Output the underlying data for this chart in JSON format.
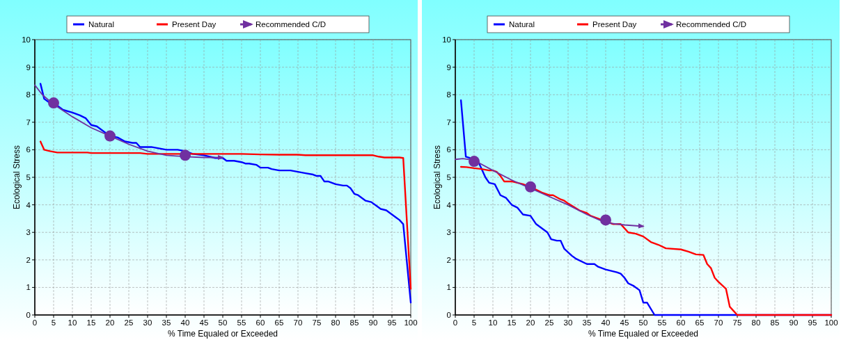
{
  "chart_data": [
    {
      "type": "line",
      "xlabel": "% Time Equaled or Exceeded",
      "ylabel": "Ecological Stress",
      "xlim": [
        0,
        100
      ],
      "ylim": [
        0,
        10
      ],
      "xticks": [
        0,
        5,
        10,
        15,
        20,
        25,
        30,
        35,
        40,
        45,
        50,
        55,
        60,
        65,
        70,
        75,
        80,
        85,
        90,
        95,
        100
      ],
      "yticks": [
        0,
        1,
        2,
        3,
        4,
        5,
        6,
        7,
        8,
        9,
        10
      ],
      "grid": true,
      "legend": "top",
      "line_style": "solid",
      "series": [
        {
          "name": "Natural",
          "color": "#0000ff",
          "x": [
            1.5,
            2.5,
            4,
            6,
            7.5,
            10,
            12,
            13.5,
            15,
            16.5,
            18,
            20,
            22,
            24,
            26,
            27,
            28,
            31,
            33,
            35,
            38,
            40,
            42,
            45,
            48,
            50,
            51,
            53,
            55,
            56,
            57,
            59,
            60,
            62,
            63,
            65,
            68,
            70,
            72,
            74,
            75,
            76,
            77,
            78,
            80,
            82,
            83,
            84,
            85,
            86,
            88,
            89.5,
            91,
            92,
            93.5,
            95,
            96,
            97,
            98,
            100
          ],
          "values": [
            8.4,
            7.85,
            7.7,
            7.6,
            7.45,
            7.35,
            7.25,
            7.15,
            6.9,
            6.85,
            6.7,
            6.5,
            6.45,
            6.3,
            6.25,
            6.25,
            6.1,
            6.1,
            6.05,
            6,
            6,
            5.95,
            5.85,
            5.8,
            5.7,
            5.7,
            5.6,
            5.6,
            5.55,
            5.5,
            5.5,
            5.45,
            5.35,
            5.35,
            5.3,
            5.25,
            5.25,
            5.2,
            5.15,
            5.1,
            5.05,
            5.05,
            4.85,
            4.85,
            4.75,
            4.7,
            4.7,
            4.6,
            4.4,
            4.35,
            4.15,
            4.1,
            3.95,
            3.85,
            3.8,
            3.65,
            3.55,
            3.45,
            3.3,
            0.45
          ]
        },
        {
          "name": "Present Day",
          "color": "#ff0000",
          "x": [
            1.5,
            2.5,
            4,
            6,
            10,
            14,
            15,
            20,
            28,
            30,
            50,
            55,
            60,
            65,
            70,
            72,
            90,
            91.5,
            93,
            97,
            98,
            100
          ],
          "values": [
            6.3,
            6,
            5.95,
            5.9,
            5.9,
            5.9,
            5.88,
            5.88,
            5.88,
            5.85,
            5.85,
            5.85,
            5.83,
            5.82,
            5.82,
            5.8,
            5.8,
            5.75,
            5.72,
            5.72,
            5.7,
            0.95
          ]
        },
        {
          "name": "Recommended C/D",
          "color": "#7030a0",
          "x": [
            0,
            2,
            5,
            10,
            15,
            20,
            25,
            30,
            35,
            40,
            45,
            50
          ],
          "values": [
            8.35,
            8,
            7.65,
            7.2,
            6.8,
            6.5,
            6.2,
            5.95,
            5.8,
            5.75,
            5.72,
            5.72
          ]
        },
        {
          "type": "scatter",
          "marker": "circle",
          "color": "#7030a0",
          "x": [
            5,
            20,
            40
          ],
          "values": [
            7.7,
            6.5,
            5.8
          ]
        }
      ]
    },
    {
      "type": "line",
      "xlabel": "% Time Equaled or Exceeded",
      "ylabel": "Ecological Stress",
      "xlim": [
        0,
        100
      ],
      "ylim": [
        0,
        10
      ],
      "xticks": [
        0,
        5,
        10,
        15,
        20,
        25,
        30,
        35,
        40,
        45,
        50,
        55,
        60,
        65,
        70,
        75,
        80,
        85,
        90,
        95,
        100
      ],
      "yticks": [
        0,
        1,
        2,
        3,
        4,
        5,
        6,
        7,
        8,
        9,
        10
      ],
      "grid": true,
      "legend": "top",
      "line_style": "solid",
      "series": [
        {
          "name": "Natural",
          "color": "#0000ff",
          "x": [
            1.5,
            2.8,
            4,
            6,
            7,
            8,
            9,
            10.5,
            12,
            13.5,
            15,
            16.5,
            18,
            20,
            21.5,
            23,
            24.5,
            25.5,
            27,
            28,
            29,
            31,
            32,
            35,
            37,
            38,
            40,
            43,
            44,
            45,
            46,
            47.5,
            49,
            50,
            51,
            53,
            100
          ],
          "values": [
            7.8,
            5.75,
            5.7,
            5.6,
            5.3,
            5,
            4.8,
            4.75,
            4.35,
            4.25,
            4,
            3.9,
            3.65,
            3.6,
            3.3,
            3.15,
            3,
            2.75,
            2.7,
            2.7,
            2.4,
            2.15,
            2.05,
            1.85,
            1.85,
            1.75,
            1.65,
            1.55,
            1.5,
            1.35,
            1.15,
            1.05,
            0.9,
            0.45,
            0.45,
            0,
            0
          ]
        },
        {
          "name": "Present Day",
          "color": "#ff0000",
          "x": [
            1.5,
            3,
            5,
            7,
            9,
            10,
            11,
            12,
            13,
            15,
            18,
            20,
            23,
            25,
            26,
            28,
            29,
            30,
            33,
            35,
            36,
            38,
            40,
            42,
            44,
            46,
            48,
            50,
            52,
            54,
            56,
            60,
            62,
            64,
            66,
            67,
            68,
            69,
            70,
            72,
            73,
            75,
            100
          ],
          "values": [
            5.38,
            5.37,
            5.33,
            5.3,
            5.25,
            5.25,
            5.2,
            5.05,
            4.85,
            4.85,
            4.75,
            4.65,
            4.45,
            4.35,
            4.35,
            4.2,
            4.15,
            4.05,
            3.8,
            3.7,
            3.6,
            3.5,
            3.4,
            3.3,
            3.3,
            3,
            2.95,
            2.85,
            2.65,
            2.55,
            2.42,
            2.38,
            2.3,
            2.2,
            2.18,
            1.85,
            1.7,
            1.35,
            1.2,
            0.95,
            0.3,
            0,
            0
          ]
        },
        {
          "name": "Recommended C/D",
          "color": "#7030a0",
          "x": [
            0,
            2,
            5,
            10,
            15,
            20,
            25,
            30,
            35,
            40,
            45,
            50
          ],
          "values": [
            5.65,
            5.68,
            5.62,
            5.25,
            4.9,
            4.6,
            4.3,
            4,
            3.65,
            3.35,
            3.27,
            3.22
          ]
        },
        {
          "type": "scatter",
          "marker": "circle",
          "color": "#7030a0",
          "x": [
            5,
            20,
            40
          ],
          "values": [
            5.58,
            4.65,
            3.45
          ]
        }
      ]
    }
  ]
}
